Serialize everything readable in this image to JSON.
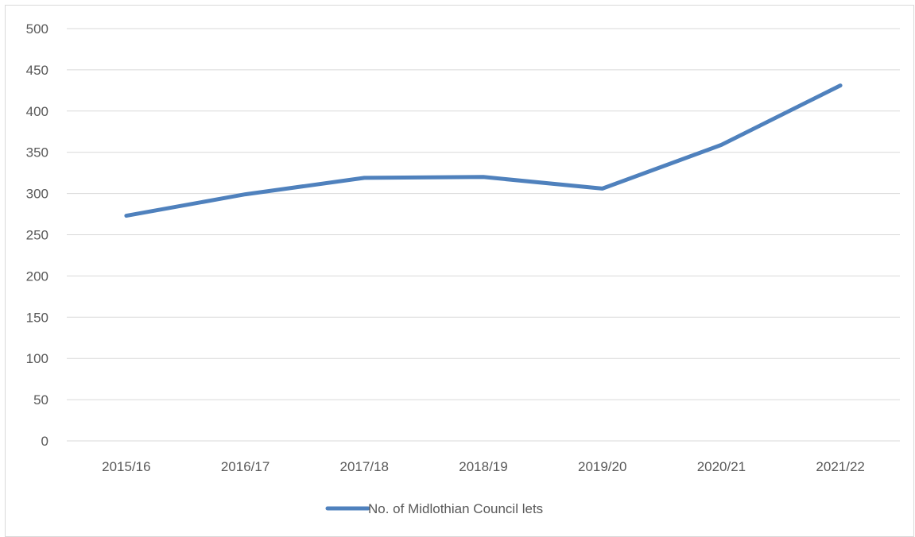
{
  "chart_data": {
    "type": "line",
    "title": "",
    "xlabel": "",
    "ylabel": "",
    "categories": [
      "2015/16",
      "2016/17",
      "2017/18",
      "2018/19",
      "2019/20",
      "2020/21",
      "2021/22"
    ],
    "series": [
      {
        "name": "No. of Midlothian Council lets",
        "values": [
          273,
          299,
          319,
          320,
          306,
          359,
          431
        ],
        "color": "#4f81bd"
      }
    ],
    "ylim": [
      0,
      500
    ],
    "yticks": [
      0,
      50,
      100,
      150,
      200,
      250,
      300,
      350,
      400,
      450,
      500
    ],
    "grid": true,
    "legend_position": "bottom"
  }
}
